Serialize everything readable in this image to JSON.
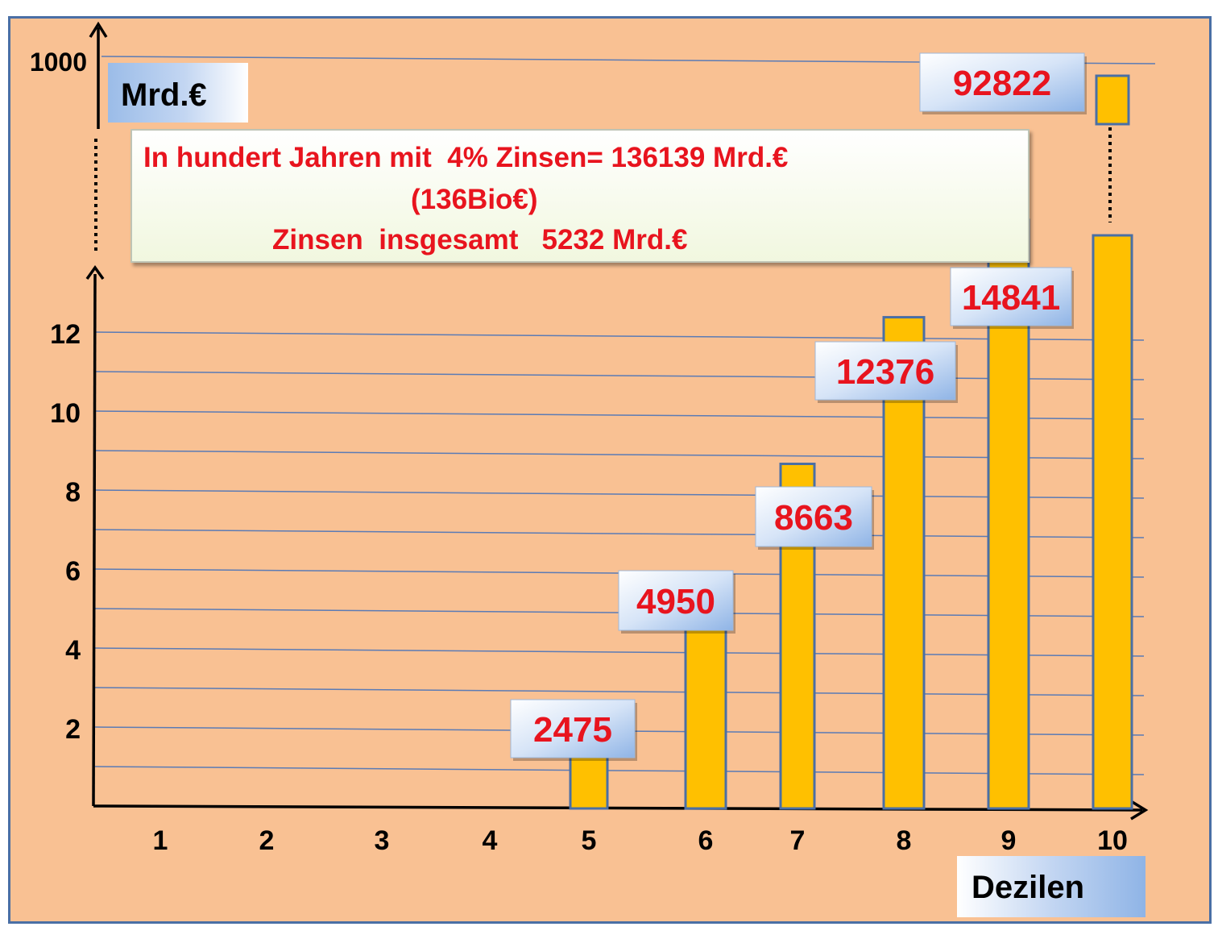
{
  "chart_data": {
    "type": "bar",
    "categories": [
      "1",
      "2",
      "3",
      "4",
      "5",
      "6",
      "7",
      "8",
      "9",
      "10"
    ],
    "values": [
      0,
      0,
      0,
      0,
      2475,
      4950,
      8663,
      12376,
      14841,
      92822
    ],
    "value_labels": [
      "",
      "",
      "",
      "",
      "2475",
      "4950",
      "8663",
      "12376",
      "14841",
      "92822"
    ],
    "y_ticks": [
      "2",
      "4",
      "6",
      "8",
      "10",
      "12"
    ],
    "y_break_tick": "1000",
    "y_axis_break": true,
    "ylabel": "Mrd.€",
    "xlabel": "Dezilen",
    "annotation": {
      "line1": "In hundert Jahren mit  4% Zinsen= 136139 Mrd.€",
      "line2": "(136Bio€)",
      "line3": "Zinsen  insgesamt   5232 Mrd.€"
    },
    "grid": true
  },
  "colors": {
    "background": "#f9c193",
    "bar_fill": "#ffc000",
    "bar_stroke": "#4a6fa5",
    "label_text": "#e8141e",
    "gridline": "#5b7bb5",
    "frame": "#4a6fa5"
  }
}
